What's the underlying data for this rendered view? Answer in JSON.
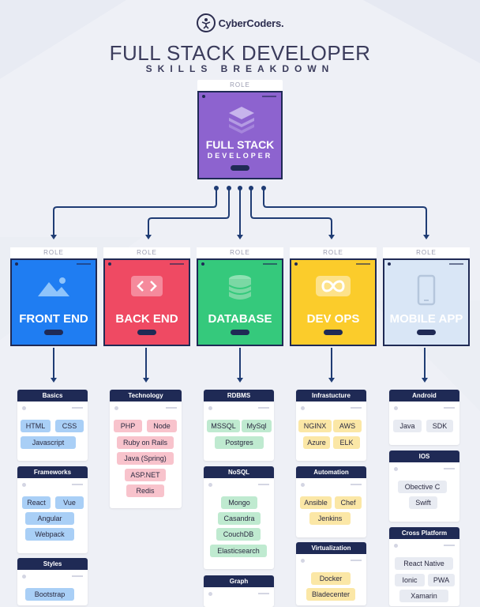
{
  "logo": {
    "text": "CyberCoders."
  },
  "title": "FULL STACK DEVELOPER",
  "subtitle": "SKILLS BREAKDOWN",
  "main_role": {
    "tag": "ROLE",
    "line1": "FULL STACK",
    "line2": "DEVELOPER",
    "color": "#8d63cf"
  },
  "roles": [
    {
      "tag": "ROLE",
      "label": "FRONT END",
      "color": "#1f7df2",
      "icon": "mountain-image-icon"
    },
    {
      "tag": "ROLE",
      "label": "BACK END",
      "color": "#ef4a63",
      "icon": "code-brackets-icon"
    },
    {
      "tag": "ROLE",
      "label": "DATABASE",
      "color": "#35c97c",
      "icon": "database-stack-icon"
    },
    {
      "tag": "ROLE",
      "label": "DEV OPS",
      "color": "#fbcc2b",
      "icon": "infinity-loop-icon"
    },
    {
      "tag": "ROLE",
      "label": "MOBILE APP",
      "color": "#d9e6f6",
      "icon": "smartphone-icon"
    }
  ],
  "groups": {
    "basics": {
      "title": "Basics",
      "items": [
        "HTML",
        "CSS",
        "Javascript"
      ]
    },
    "frameworks": {
      "title": "Frameworks",
      "items": [
        "React",
        "Vue",
        "Angular",
        "Webpack"
      ]
    },
    "styles": {
      "title": "Styles",
      "items": [
        "Bootstrap"
      ]
    },
    "technology": {
      "title": "Technology",
      "items": [
        "PHP",
        "Node",
        "Ruby on Rails",
        "Java (Spring)",
        "ASP.NET",
        "Redis"
      ]
    },
    "rdbms": {
      "title": "RDBMS",
      "items": [
        "MSSQL",
        "MySql",
        "Postgres"
      ]
    },
    "nosql": {
      "title": "NoSQL",
      "items": [
        "Mongo",
        "Casandra",
        "CouchDB",
        "Elasticsearch"
      ]
    },
    "graph": {
      "title": "Graph",
      "items": []
    },
    "infrastructure": {
      "title": "Infrastucture",
      "items": [
        "NGINX",
        "AWS",
        "Azure",
        "ELK"
      ]
    },
    "automation": {
      "title": "Automation",
      "items": [
        "Ansible",
        "Chef",
        "Jenkins"
      ]
    },
    "virtualization": {
      "title": "Virtualization",
      "items": [
        "Docker",
        "Bladecenter"
      ]
    },
    "android": {
      "title": "Android",
      "items": [
        "Java",
        "SDK"
      ]
    },
    "ios": {
      "title": "IOS",
      "items": [
        "Obective C",
        "Swift"
      ]
    },
    "cross": {
      "title": "Cross Platform",
      "items": [
        "React Native",
        "Ionic",
        "PWA",
        "Xamarin"
      ]
    }
  }
}
